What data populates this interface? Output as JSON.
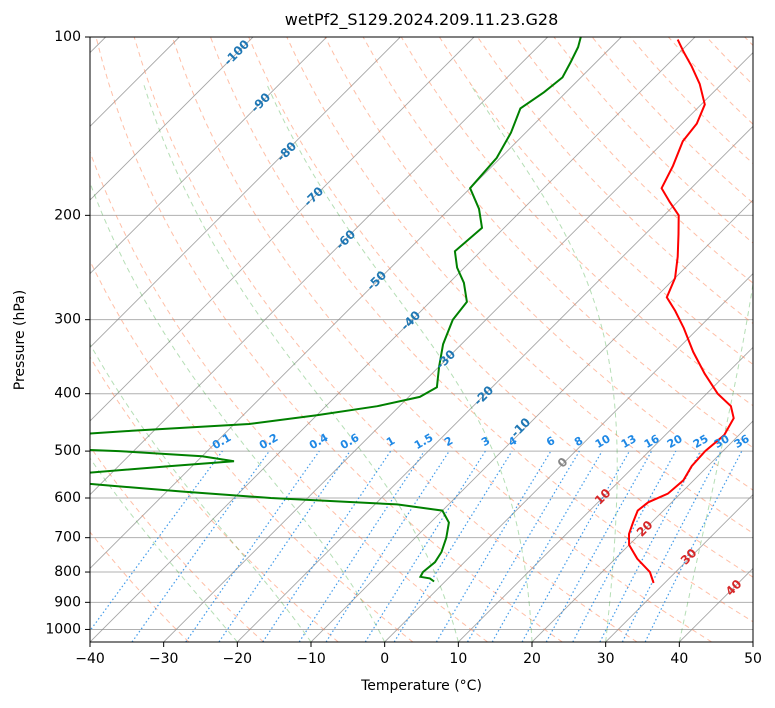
{
  "chart_data": {
    "type": "line",
    "title": "wetPf2_S129.2024.209.11.23.G28",
    "xlabel": "Temperature (°C)",
    "ylabel": "Pressure (hPa)",
    "xlim": [
      -40,
      50
    ],
    "ylim": [
      1050,
      100
    ],
    "y_scale": "log",
    "grid": true,
    "x_ticks": [
      -40,
      -30,
      -20,
      -10,
      0,
      10,
      20,
      30,
      40,
      50
    ],
    "y_ticks": [
      100,
      200,
      300,
      400,
      500,
      600,
      700,
      800,
      900,
      1000
    ],
    "skew": "45°",
    "series": [
      {
        "color": "#ff0000",
        "points": [
          [
            835,
            28.5
          ],
          [
            800,
            26.5
          ],
          [
            760,
            23.0
          ],
          [
            720,
            20.0
          ],
          [
            690,
            18.5
          ],
          [
            660,
            17.5
          ],
          [
            630,
            16.5
          ],
          [
            610,
            16.8
          ],
          [
            590,
            18.3
          ],
          [
            560,
            18.6
          ],
          [
            530,
            17.8
          ],
          [
            500,
            17.6
          ],
          [
            470,
            18.0
          ],
          [
            440,
            17.0
          ],
          [
            420,
            15.0
          ],
          [
            400,
            11.5
          ],
          [
            370,
            7.0
          ],
          [
            340,
            2.5
          ],
          [
            310,
            -2.0
          ],
          [
            290,
            -5.5
          ],
          [
            275,
            -8.5
          ],
          [
            255,
            -10.0
          ],
          [
            235,
            -12.5
          ],
          [
            215,
            -15.5
          ],
          [
            200,
            -18.0
          ],
          [
            190,
            -21.0
          ],
          [
            180,
            -24.0
          ],
          [
            165,
            -25.5
          ],
          [
            150,
            -27.5
          ],
          [
            140,
            -28.0
          ],
          [
            130,
            -29.5
          ],
          [
            120,
            -33.0
          ],
          [
            112,
            -36.5
          ],
          [
            106,
            -39.5
          ],
          [
            101,
            -42.0
          ]
        ]
      },
      {
        "color": "#008000",
        "points": [
          [
            830,
            -1.5
          ],
          [
            820,
            -2.5
          ],
          [
            815,
            -4.0
          ],
          [
            800,
            -4.3
          ],
          [
            770,
            -4.0
          ],
          [
            740,
            -4.5
          ],
          [
            700,
            -5.8
          ],
          [
            660,
            -7.5
          ],
          [
            630,
            -10.0
          ],
          [
            615,
            -17.0
          ],
          [
            600,
            -35.0
          ],
          [
            585,
            -48.0
          ],
          [
            570,
            -60.0
          ],
          [
            555,
            -71.0
          ],
          [
            545,
            -64.0
          ],
          [
            530,
            -53.0
          ],
          [
            520,
            -45.0
          ],
          [
            510,
            -50.0
          ],
          [
            500,
            -62.0
          ],
          [
            493,
            -75.0
          ],
          [
            475,
            -77.0
          ],
          [
            462,
            -63.0
          ],
          [
            450,
            -48.0
          ],
          [
            435,
            -40.0
          ],
          [
            420,
            -33.0
          ],
          [
            405,
            -28.5
          ],
          [
            390,
            -27.5
          ],
          [
            360,
            -30.0
          ],
          [
            330,
            -32.5
          ],
          [
            300,
            -34.5
          ],
          [
            280,
            -35.0
          ],
          [
            260,
            -38.0
          ],
          [
            245,
            -41.0
          ],
          [
            230,
            -43.5
          ],
          [
            210,
            -43.0
          ],
          [
            195,
            -46.0
          ],
          [
            180,
            -50.0
          ],
          [
            160,
            -50.5
          ],
          [
            145,
            -52.0
          ],
          [
            132,
            -54.0
          ],
          [
            124,
            -53.0
          ],
          [
            117,
            -52.5
          ],
          [
            110,
            -53.5
          ],
          [
            104,
            -54.5
          ],
          [
            100,
            -55.5
          ]
        ]
      }
    ],
    "dry_adiabat_labels": [
      "-100",
      "-90",
      "-80",
      "-70",
      "-60",
      "-50",
      "-40",
      "-30",
      "-20",
      "-10"
    ],
    "mixing_ratio_labels": [
      "0.1",
      "0.2",
      "0.4",
      "0.6",
      "1",
      "1.5",
      "2",
      "3",
      "4",
      "6",
      "8",
      "10",
      "13",
      "16",
      "20",
      "25",
      "30",
      "36"
    ],
    "moist_adiabat_labels": [
      "0",
      "10",
      "20",
      "30",
      "40"
    ],
    "colors": {
      "temperature": "#ff0000",
      "dewpoint": "#008000",
      "dry_adiabat": "#ff7f50",
      "moist_adiabat": "#2ca02c",
      "mixing_ratio": "#1e88e5",
      "isotherm": "#888888",
      "dry_label": "#1f77b4",
      "moist_label": "#d62728",
      "mix_label": "#1e88e5"
    }
  }
}
